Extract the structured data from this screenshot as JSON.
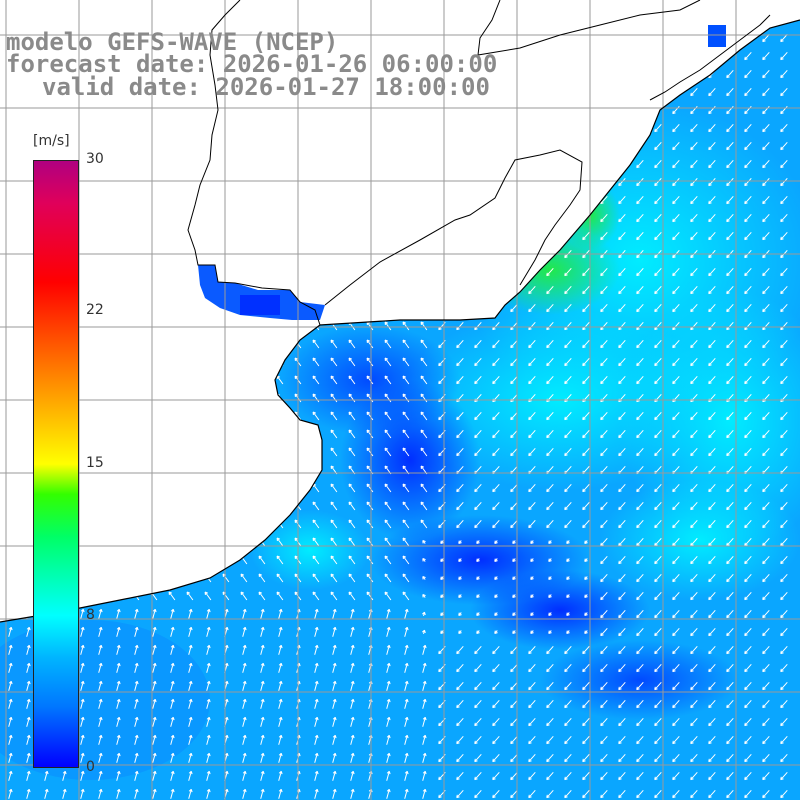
{
  "title": {
    "line1": "modelo GEFS-WAVE (NCEP)",
    "line2": "forecast date: 2026-01-26 06:00:00",
    "line3": "valid date: 2026-01-27 18:00:00"
  },
  "colorbar": {
    "unit": "[m/s]",
    "ticks": [
      "30",
      "22",
      "15",
      "8",
      "0"
    ],
    "min": 0,
    "max": 30,
    "colors": {
      "c0": "#0000ff",
      "c8": "#00ffff",
      "c15": "#ffff00",
      "c22": "#ff3300",
      "c30": "#b00080"
    }
  },
  "map": {
    "land_color": "#ffffff",
    "coast_color": "#000000",
    "grid_color": "#9a9a9a",
    "arrow_color": "#ffffff"
  }
}
